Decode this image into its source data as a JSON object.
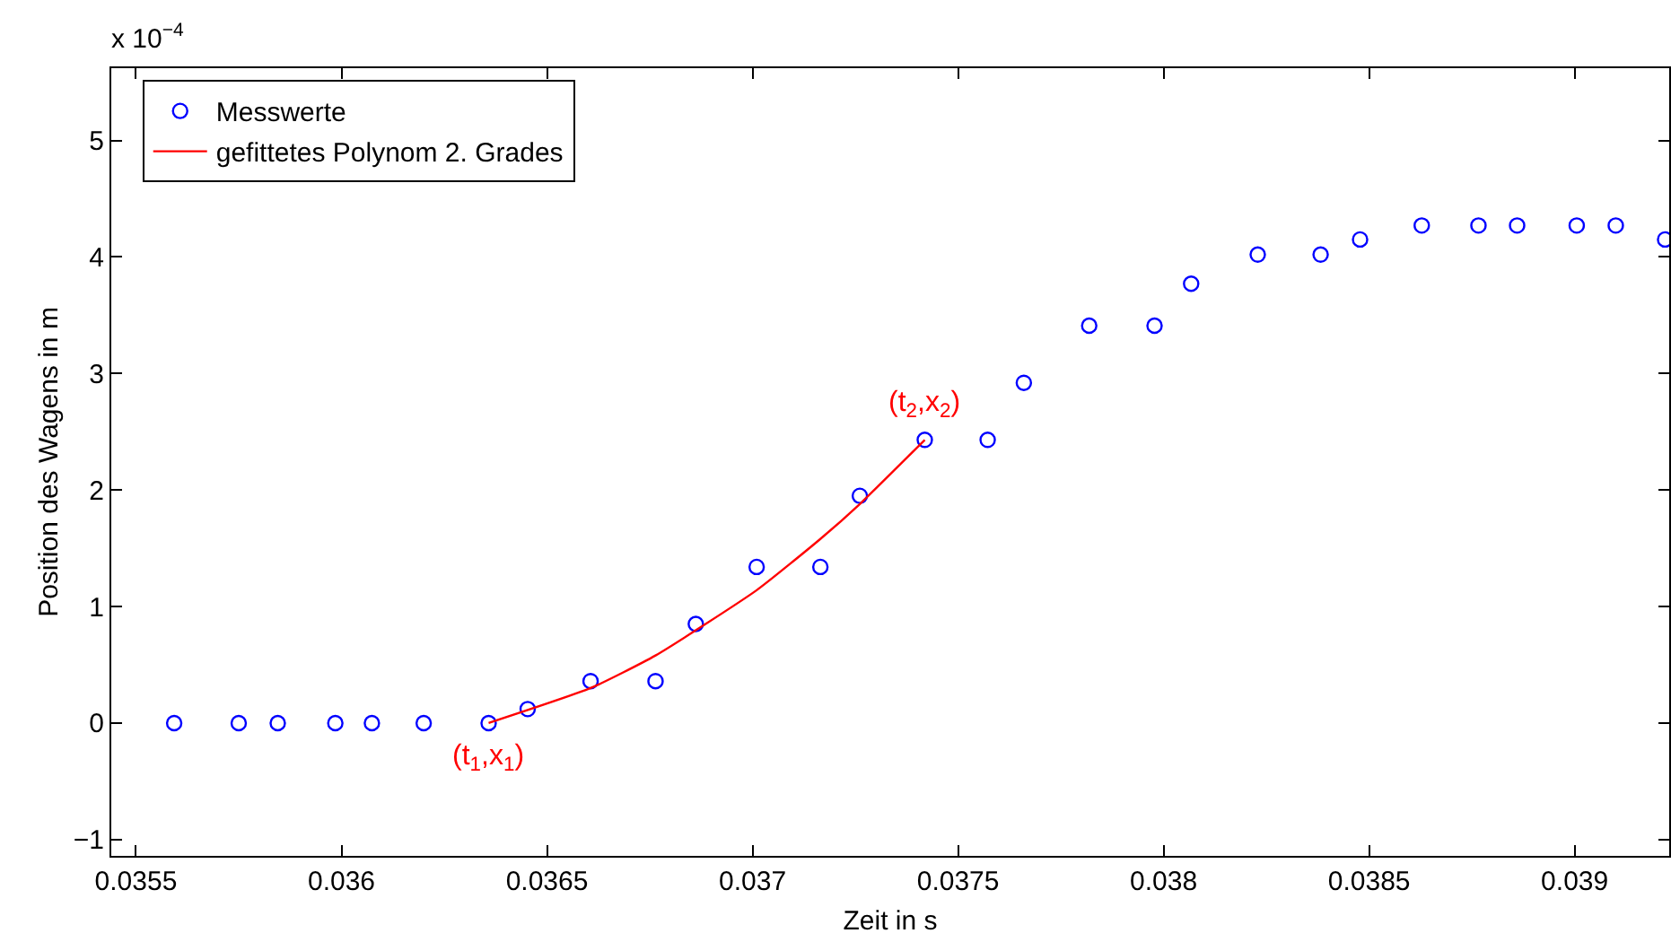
{
  "chart_data": {
    "type": "scatter",
    "xlabel": "Zeit in s",
    "ylabel": "Position des Wagens in m",
    "series": [
      {
        "name": "Messwerte",
        "marker": "circle",
        "color": "#0000ff",
        "x": [
          0.035593,
          0.03575,
          0.035845,
          0.035985,
          0.036074,
          0.0362,
          0.036358,
          0.036453,
          0.036606,
          0.036764,
          0.036862,
          0.03701,
          0.037165,
          0.037261,
          0.037419,
          0.037572,
          0.03766,
          0.037819,
          0.037978,
          0.038067,
          0.038229,
          0.038382,
          0.038478,
          0.038628,
          0.038766,
          0.03886,
          0.039005,
          0.0391,
          0.03922
        ],
        "values": [
          0,
          0,
          0,
          0,
          0,
          0,
          0,
          0.12,
          0.36,
          0.36,
          0.85,
          1.34,
          1.34,
          1.95,
          2.43,
          2.43,
          2.92,
          3.41,
          3.41,
          3.77,
          4.02,
          4.02,
          4.15,
          4.27,
          4.27,
          4.27,
          4.27,
          4.27,
          4.15
        ]
      },
      {
        "name": "gefittetes Polynom 2. Grades",
        "type": "line",
        "marker": "none",
        "color": "#ff0000",
        "x": [
          0.036358,
          0.036606,
          0.036764,
          0.03701,
          0.037165,
          0.037261,
          0.037419
        ],
        "values": [
          0,
          0.3,
          0.58,
          1.14,
          1.58,
          1.88,
          2.43
        ]
      }
    ],
    "annotations": [
      {
        "text": "(t$_{1}$,x$_{1}$)",
        "x": 0.036358,
        "y": 0
      },
      {
        "text": "(t$_{2}$,x$_{2}$)",
        "x": 0.037419,
        "y": 2.43
      },
      "x 10$^{−4}$"
    ],
    "xlim": [
      0.03544,
      0.03923
    ],
    "xticks": [
      0.0355,
      0.036,
      0.0365,
      0.037,
      0.0375,
      0.038,
      0.0385,
      0.039
    ],
    "ylim": [
      -1.14,
      5.62
    ],
    "yticks": [
      {
        "value": -1,
        "label": "−1"
      },
      0,
      1,
      2,
      3,
      4,
      5
    ],
    "grid": false,
    "legend": "top left",
    "line_style": "solid"
  }
}
